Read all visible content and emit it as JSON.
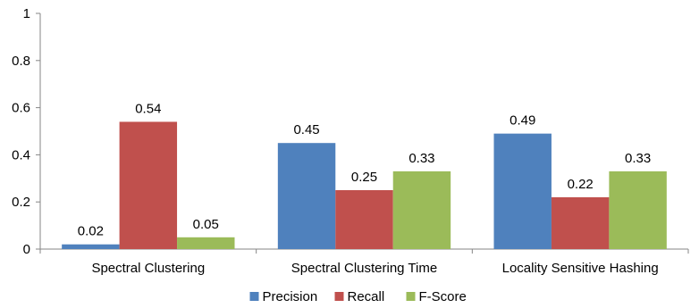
{
  "chart_data": {
    "type": "bar",
    "categories": [
      "Spectral Clustering",
      "Spectral Clustering Time",
      "Locality Sensitive Hashing"
    ],
    "series": [
      {
        "name": "Precision",
        "values": [
          0.02,
          0.45,
          0.49
        ],
        "color": "#4f81bd"
      },
      {
        "name": "Recall",
        "values": [
          0.54,
          0.25,
          0.22
        ],
        "color": "#c0504d"
      },
      {
        "name": "F-Score",
        "values": [
          0.05,
          0.33,
          0.33
        ],
        "color": "#9bbb59"
      }
    ],
    "title": "",
    "xlabel": "",
    "ylabel": "",
    "ylim": [
      0,
      1
    ],
    "yticks": [
      "0",
      "0.2",
      "0.4",
      "0.6",
      "0.8",
      "1"
    ],
    "grid": false,
    "legend_position": "bottom"
  }
}
